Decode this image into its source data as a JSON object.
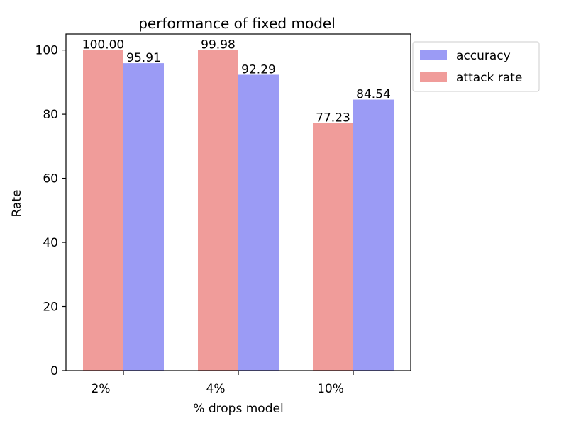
{
  "chart_data": {
    "type": "bar",
    "title": "performance of fixed model",
    "xlabel": "% drops model",
    "ylabel": "Rate",
    "categories": [
      "2%",
      "4%",
      "10%"
    ],
    "series": [
      {
        "name": "attack rate",
        "values": [
          100.0,
          99.98,
          77.23
        ],
        "labels": [
          "100.00",
          "99.98",
          "77.23"
        ],
        "color": "#f09c9a"
      },
      {
        "name": "accuracy",
        "values": [
          95.91,
          92.29,
          84.54
        ],
        "labels": [
          "95.91",
          "92.29",
          "84.54"
        ],
        "color": "#9b9bf5"
      }
    ],
    "legend_order": [
      "accuracy",
      "attack rate"
    ],
    "legend_position": "outside-right-top",
    "ylim": [
      0,
      105
    ],
    "yticks": [
      0,
      20,
      40,
      60,
      80,
      100
    ],
    "grid": false
  }
}
